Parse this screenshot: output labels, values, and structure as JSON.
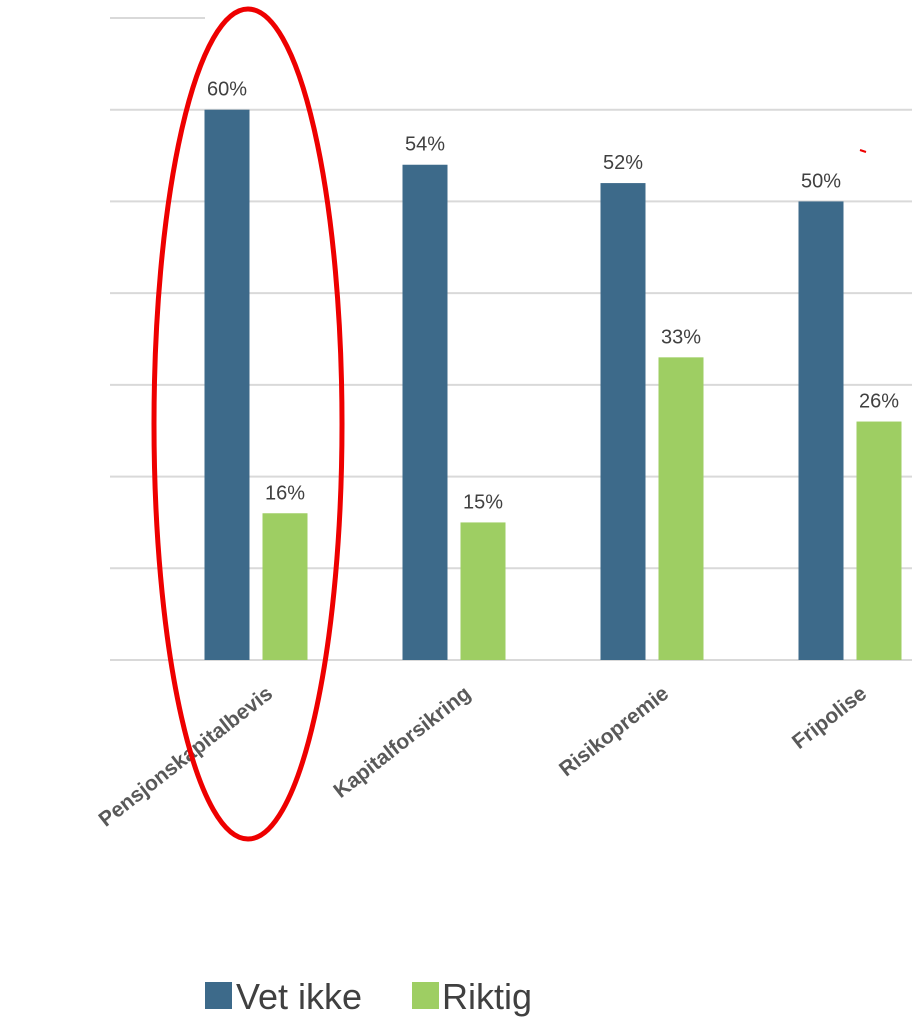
{
  "chart_data": {
    "type": "bar",
    "title": "",
    "xlabel": "",
    "ylabel": "",
    "categories": [
      "Pensjonskapitalbevis",
      "Kapitalforsikring",
      "Risikopremie",
      "Fripolise"
    ],
    "series": [
      {
        "name": "Vet ikke",
        "values": [
          60,
          54,
          52,
          50
        ],
        "labels": [
          "60%",
          "54%",
          "52%",
          "50%"
        ]
      },
      {
        "name": "Riktig",
        "values": [
          16,
          15,
          33,
          26
        ],
        "labels": [
          "16%",
          "15%",
          "33%",
          "26%"
        ]
      }
    ],
    "ylim": [
      0,
      70
    ],
    "grid": true,
    "legend": "bottom",
    "highlight": {
      "shape": "ellipse",
      "category": "Pensjonskapitalbevis"
    }
  },
  "colors": {
    "Vet ikke": "#3D6A8A",
    "Riktig": "#9ECE63",
    "grid": "#D9D9D9",
    "highlight": "#EE0000"
  }
}
